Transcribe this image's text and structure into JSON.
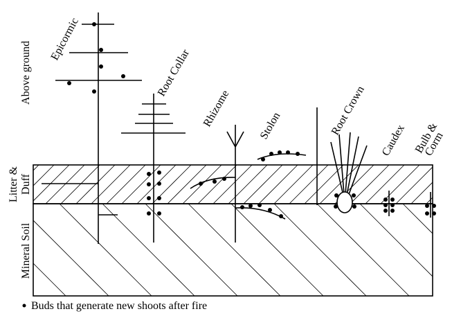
{
  "zones": {
    "above": "Above ground",
    "litter": [
      "Litter &",
      "Duff"
    ],
    "soil": "Mineral Soil"
  },
  "plants": [
    {
      "label": [
        "Epicormic"
      ]
    },
    {
      "label": [
        "Root Collar"
      ]
    },
    {
      "label": [
        "Rhizome"
      ]
    },
    {
      "label": [
        "Stolon"
      ]
    },
    {
      "label": [
        "Root Crown"
      ]
    },
    {
      "label": [
        "Caudex"
      ]
    },
    {
      "label": [
        "Bulb &",
        "Corm"
      ]
    }
  ],
  "legend": "Buds that generate new shoots after fire"
}
